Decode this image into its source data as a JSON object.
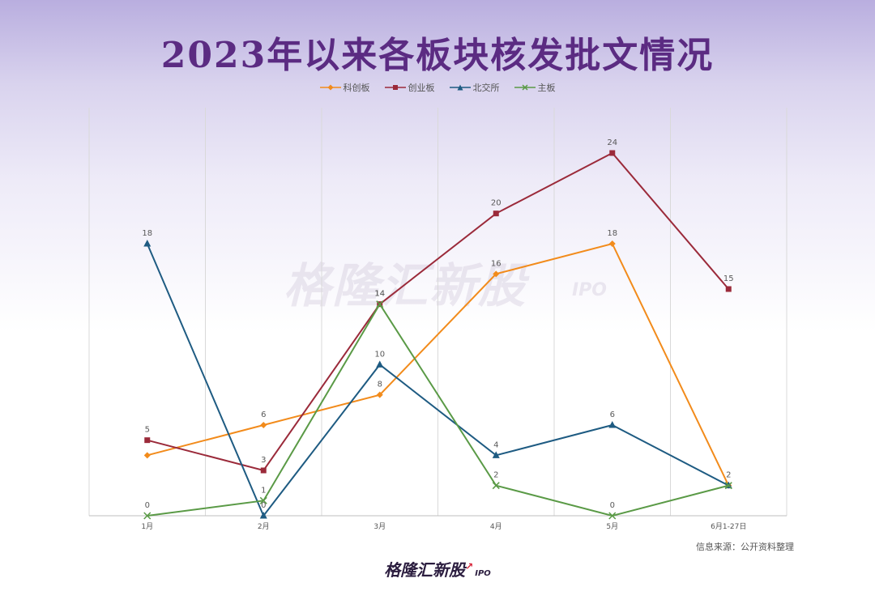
{
  "title": "2023年以来各板块核发批文情况",
  "watermark": {
    "text": "格隆汇新股",
    "suffix": "IPO"
  },
  "source_note": "信息来源：公开资料整理",
  "brand": {
    "text": "格隆汇新股",
    "suffix": "IPO",
    "arrow": "↗"
  },
  "chart_data": {
    "type": "line",
    "categories": [
      "1月",
      "2月",
      "3月",
      "4月",
      "5月",
      "6月1-27日"
    ],
    "ylim": [
      0,
      27
    ],
    "grid": "vertical",
    "legend": "top-center",
    "series": [
      {
        "name": "科创板",
        "color": "#f28b1b",
        "marker": "diamond",
        "values": [
          4,
          6,
          8,
          16,
          18,
          2
        ],
        "labels": [
          null,
          "6",
          "8",
          "16",
          "18",
          null
        ]
      },
      {
        "name": "创业板",
        "color": "#9b2a3a",
        "marker": "square",
        "values": [
          5,
          3,
          14,
          20,
          24,
          15
        ],
        "labels": [
          "5",
          "3",
          "14",
          "20",
          "24",
          "15"
        ]
      },
      {
        "name": "北交所",
        "color": "#1e5b82",
        "marker": "triangle",
        "values": [
          18,
          0,
          10,
          4,
          6,
          2
        ],
        "labels": [
          "18",
          "0",
          "10",
          "4",
          "6",
          null
        ]
      },
      {
        "name": "主板",
        "color": "#5a9a46",
        "marker": "x",
        "values": [
          0,
          1,
          14,
          2,
          0,
          2
        ],
        "labels": [
          "0",
          "1",
          "14",
          "2",
          "0",
          "2"
        ]
      }
    ]
  }
}
